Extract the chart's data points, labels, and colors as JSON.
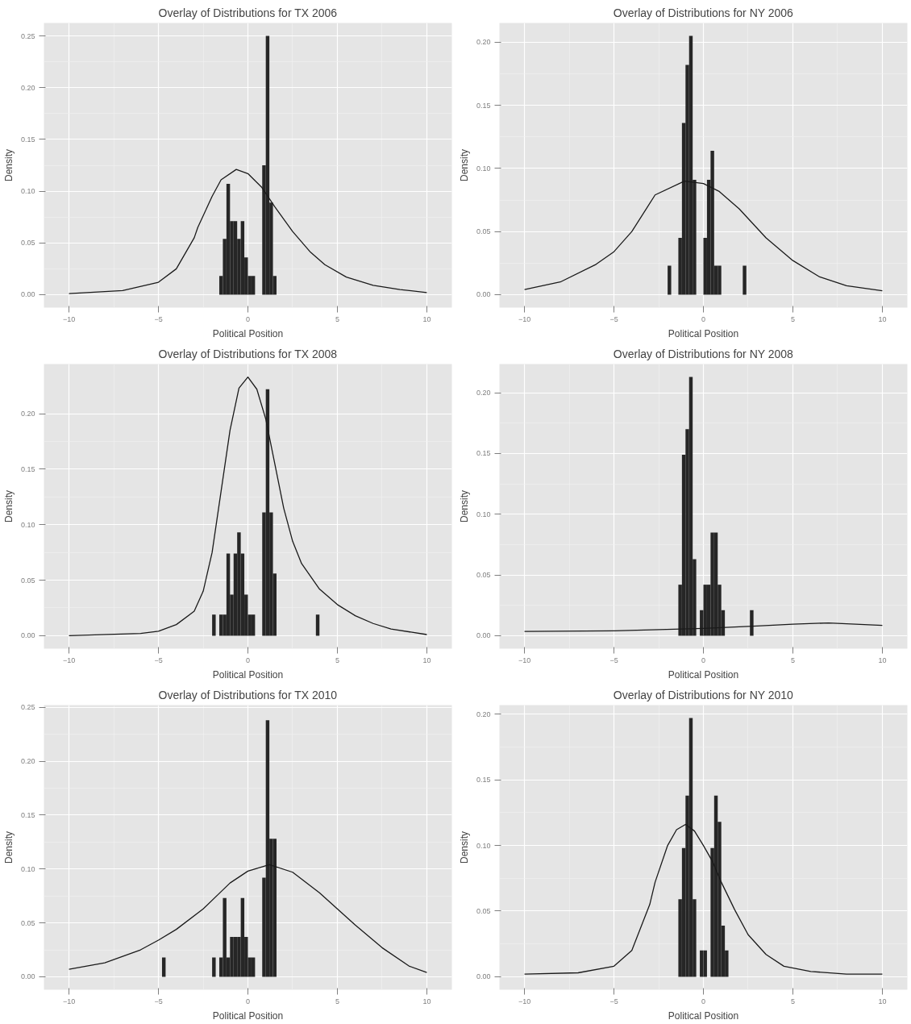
{
  "chart_data": [
    {
      "type": "histogram",
      "title": "Overlay of Distributions for TX 2006",
      "xlabel": "Political Position",
      "ylabel": "Density",
      "color": "#262626",
      "grid": true,
      "xlim": [
        -11.4,
        11.4
      ],
      "ylim": [
        -0.0125,
        0.2625
      ],
      "xticks": [
        -10,
        -5,
        0,
        5,
        10
      ],
      "yticks": [
        {
          "value": 0,
          "label": "0.00"
        },
        {
          "value": 0.05,
          "label": "0.05"
        },
        {
          "value": 0.1,
          "label": "0.10"
        },
        {
          "value": 0.15,
          "label": "0.15"
        },
        {
          "value": 0.2,
          "label": "0.20"
        },
        {
          "value": 0.25,
          "label": "0.25"
        }
      ],
      "bins": [
        -1.6,
        -1.4,
        -1.2,
        -1.0,
        -0.8,
        -0.6,
        -0.4,
        -0.2,
        0,
        0.2,
        0.4,
        0.6,
        0.8,
        1.0,
        1.2,
        1.4,
        1.6
      ],
      "values": [
        0.018,
        0.054,
        0.107,
        0.071,
        0.071,
        0.054,
        0.071,
        0.036,
        0.018,
        0.018,
        0,
        0,
        0.125,
        0.25,
        0.089,
        0.018
      ],
      "series": [
        {
          "type": "line",
          "color": "#1a1a1a",
          "x": [
            -10,
            -7,
            -5,
            -4,
            -3,
            -2.8,
            -2,
            -1.5,
            -0.65,
            0,
            0.76,
            1.5,
            2.5,
            3.5,
            4.3,
            5.5,
            7,
            8.5,
            10
          ],
          "values": [
            0.001,
            0.004,
            0.012,
            0.025,
            0.055,
            0.065,
            0.095,
            0.111,
            0.121,
            0.117,
            0.104,
            0.085,
            0.061,
            0.041,
            0.029,
            0.017,
            0.009,
            0.005,
            0.002
          ]
        }
      ]
    },
    {
      "type": "histogram",
      "title": "Overlay of Distributions for NY 2006",
      "xlabel": "Political Position",
      "ylabel": "Density",
      "color": "#262626",
      "grid": true,
      "xlim": [
        -11.4,
        11.4
      ],
      "ylim": [
        -0.0103,
        0.2153
      ],
      "xticks": [
        -10,
        -5,
        0,
        5,
        10
      ],
      "yticks": [
        {
          "value": 0,
          "label": "0.00"
        },
        {
          "value": 0.05,
          "label": "0.05"
        },
        {
          "value": 0.1,
          "label": "0.10"
        },
        {
          "value": 0.15,
          "label": "0.15"
        },
        {
          "value": 0.2,
          "label": "0.20"
        }
      ],
      "bins": [
        -2.0,
        -1.8,
        -1.6,
        -1.4,
        -1.2,
        -1.0,
        -0.8,
        -0.6,
        -0.4,
        -0.2,
        0,
        0.2,
        0.4,
        0.6,
        0.8,
        1.0,
        1.2,
        1.4,
        1.6,
        1.8,
        2.0,
        2.2,
        2.4
      ],
      "values": [
        0.023,
        0,
        0,
        0.045,
        0.136,
        0.182,
        0.205,
        0.091,
        0,
        0,
        0.045,
        0.091,
        0.114,
        0.023,
        0.023,
        0,
        0,
        0,
        0,
        0,
        0,
        0.023
      ],
      "series": [
        {
          "type": "line",
          "color": "#1a1a1a",
          "x": [
            -10,
            -8,
            -6,
            -5,
            -4,
            -2.7,
            -1.06,
            0,
            0.86,
            2,
            3.5,
            5,
            6.5,
            8,
            10
          ],
          "values": [
            0.004,
            0.01,
            0.024,
            0.034,
            0.05,
            0.079,
            0.09,
            0.088,
            0.082,
            0.068,
            0.045,
            0.027,
            0.014,
            0.007,
            0.003
          ]
        }
      ]
    },
    {
      "type": "histogram",
      "title": "Overlay of Distributions for TX 2008",
      "xlabel": "Political Position",
      "ylabel": "Density",
      "color": "#262626",
      "grid": true,
      "xlim": [
        -11.4,
        11.4
      ],
      "ylim": [
        -0.0117,
        0.2447
      ],
      "xticks": [
        -10,
        -5,
        0,
        5,
        10
      ],
      "yticks": [
        {
          "value": 0,
          "label": "0.00"
        },
        {
          "value": 0.05,
          "label": "0.05"
        },
        {
          "value": 0.1,
          "label": "0.10"
        },
        {
          "value": 0.15,
          "label": "0.15"
        },
        {
          "value": 0.2,
          "label": "0.20"
        }
      ],
      "bins": [
        -2.0,
        -1.8,
        -1.6,
        -1.4,
        -1.2,
        -1.0,
        -0.8,
        -0.6,
        -0.4,
        -0.2,
        0,
        0.2,
        0.4,
        0.6,
        0.8,
        1.0,
        1.2,
        1.4,
        1.6,
        1.8,
        2.0,
        2.2,
        2.4,
        2.6,
        2.8,
        3.0,
        3.2,
        3.4,
        3.6,
        3.8,
        4.0
      ],
      "values": [
        0.019,
        0,
        0.019,
        0.019,
        0.074,
        0.037,
        0.074,
        0.093,
        0.074,
        0.037,
        0.019,
        0.019,
        0,
        0,
        0.111,
        0.222,
        0.111,
        0.056,
        0,
        0,
        0,
        0,
        0,
        0,
        0,
        0,
        0,
        0,
        0,
        0.019
      ],
      "series": [
        {
          "type": "line",
          "color": "#1a1a1a",
          "x": [
            -10,
            -6,
            -5,
            -4,
            -3,
            -2.5,
            -2,
            -1.5,
            -1,
            -0.5,
            0,
            0.5,
            1,
            1.5,
            2,
            2.5,
            3,
            4,
            5,
            6,
            7,
            8,
            10
          ],
          "values": [
            0.0,
            0.002,
            0.004,
            0.01,
            0.022,
            0.04,
            0.075,
            0.13,
            0.185,
            0.223,
            0.233,
            0.222,
            0.195,
            0.155,
            0.115,
            0.085,
            0.065,
            0.042,
            0.028,
            0.018,
            0.011,
            0.006,
            0.001
          ]
        }
      ]
    },
    {
      "type": "histogram",
      "title": "Overlay of Distributions for NY 2008",
      "xlabel": "Political Position",
      "ylabel": "Density",
      "color": "#262626",
      "grid": true,
      "xlim": [
        -11.4,
        11.4
      ],
      "ylim": [
        -0.0107,
        0.2237
      ],
      "xticks": [
        -10,
        -5,
        0,
        5,
        10
      ],
      "yticks": [
        {
          "value": 0,
          "label": "0.00"
        },
        {
          "value": 0.05,
          "label": "0.05"
        },
        {
          "value": 0.1,
          "label": "0.10"
        },
        {
          "value": 0.15,
          "label": "0.15"
        },
        {
          "value": 0.2,
          "label": "0.20"
        }
      ],
      "bins": [
        -1.4,
        -1.2,
        -1.0,
        -0.8,
        -0.6,
        -0.4,
        -0.2,
        0,
        0.2,
        0.4,
        0.6,
        0.8,
        1.0,
        1.2,
        1.4,
        1.6,
        1.8,
        2.0,
        2.2,
        2.4,
        2.6,
        2.8
      ],
      "values": [
        0.042,
        0.149,
        0.17,
        0.213,
        0.063,
        0,
        0.021,
        0.042,
        0.042,
        0.085,
        0.085,
        0.042,
        0.021,
        0,
        0,
        0,
        0,
        0,
        0,
        0,
        0.021
      ],
      "series": [
        {
          "type": "line",
          "color": "#1a1a1a",
          "x": [
            -10,
            -5,
            0,
            3,
            5,
            7,
            10
          ],
          "values": [
            0.0035,
            0.004,
            0.006,
            0.008,
            0.0095,
            0.0105,
            0.0085
          ]
        }
      ]
    },
    {
      "type": "histogram",
      "title": "Overlay of Distributions for TX 2010",
      "xlabel": "Political Position",
      "ylabel": "Density",
      "color": "#262626",
      "grid": true,
      "xlim": [
        -11.4,
        11.4
      ],
      "ylim": [
        -0.012,
        0.252
      ],
      "xticks": [
        -10,
        -5,
        0,
        5,
        10
      ],
      "yticks": [
        {
          "value": 0,
          "label": "0.00"
        },
        {
          "value": 0.05,
          "label": "0.05"
        },
        {
          "value": 0.1,
          "label": "0.10"
        },
        {
          "value": 0.15,
          "label": "0.15"
        },
        {
          "value": 0.2,
          "label": "0.20"
        },
        {
          "value": 0.25,
          "label": "0.25"
        }
      ],
      "bins": [
        -4.8,
        -4.6,
        -4.4,
        -4.2,
        -4.0,
        -3.8,
        -3.6,
        -3.4,
        -3.2,
        -3.0,
        -2.8,
        -2.6,
        -2.4,
        -2.2,
        -2.0,
        -1.8,
        -1.6,
        -1.4,
        -1.2,
        -1.0,
        -0.8,
        -0.6,
        -0.4,
        -0.2,
        0,
        0.2,
        0.4,
        0.6,
        0.8,
        1.0,
        1.2,
        1.4,
        1.6
      ],
      "values": [
        0.018,
        0,
        0,
        0,
        0,
        0,
        0,
        0,
        0,
        0,
        0,
        0,
        0,
        0,
        0.018,
        0,
        0.018,
        0.073,
        0.018,
        0.037,
        0.037,
        0.037,
        0.073,
        0.037,
        0.018,
        0.018,
        0,
        0,
        0.092,
        0.238,
        0.128,
        0.128
      ],
      "series": [
        {
          "type": "line",
          "color": "#1a1a1a",
          "x": [
            -10,
            -8,
            -6,
            -5,
            -4,
            -2.5,
            -1,
            0,
            1.2,
            2.5,
            4,
            5,
            6,
            7.5,
            9,
            10
          ],
          "values": [
            0.007,
            0.013,
            0.025,
            0.034,
            0.044,
            0.063,
            0.087,
            0.098,
            0.104,
            0.097,
            0.078,
            0.063,
            0.048,
            0.027,
            0.01,
            0.004
          ]
        }
      ]
    },
    {
      "type": "histogram",
      "title": "Overlay of Distributions for NY 2010",
      "xlabel": "Political Position",
      "ylabel": "Density",
      "color": "#262626",
      "grid": true,
      "xlim": [
        -11.4,
        11.4
      ],
      "ylim": [
        -0.0099,
        0.2069
      ],
      "xticks": [
        -10,
        -5,
        0,
        5,
        10
      ],
      "yticks": [
        {
          "value": 0,
          "label": "0.00"
        },
        {
          "value": 0.05,
          "label": "0.05"
        },
        {
          "value": 0.1,
          "label": "0.10"
        },
        {
          "value": 0.15,
          "label": "0.15"
        },
        {
          "value": 0.2,
          "label": "0.20"
        }
      ],
      "bins": [
        -1.4,
        -1.2,
        -1.0,
        -0.8,
        -0.6,
        -0.4,
        -0.2,
        0,
        0.2,
        0.4,
        0.6,
        0.8,
        1.0,
        1.2,
        1.4
      ],
      "values": [
        0.059,
        0.098,
        0.138,
        0.197,
        0.059,
        0,
        0.02,
        0.02,
        0,
        0.098,
        0.138,
        0.118,
        0.039,
        0.02
      ],
      "series": [
        {
          "type": "line",
          "color": "#1a1a1a",
          "x": [
            -10,
            -7,
            -5,
            -4,
            -3,
            -2.7,
            -2,
            -1.5,
            -1,
            -0.5,
            0,
            0.5,
            1,
            1.75,
            2.5,
            3.5,
            4.5,
            6,
            8,
            10
          ],
          "values": [
            0.002,
            0.003,
            0.008,
            0.02,
            0.055,
            0.072,
            0.1,
            0.112,
            0.116,
            0.111,
            0.1,
            0.088,
            0.072,
            0.051,
            0.032,
            0.017,
            0.008,
            0.004,
            0.002,
            0.002
          ]
        }
      ]
    }
  ]
}
